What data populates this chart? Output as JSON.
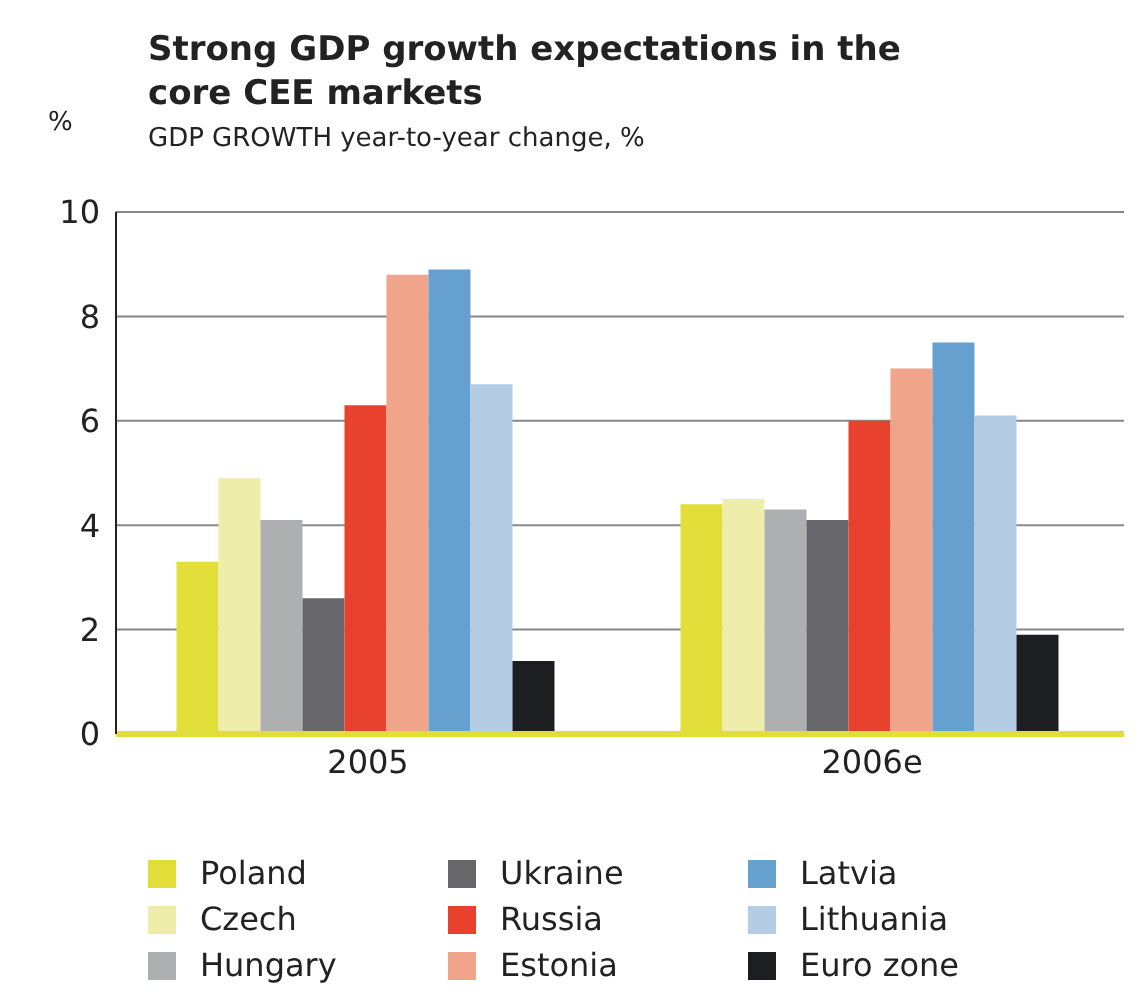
{
  "chart_data": {
    "type": "bar",
    "title": "Strong GDP growth expectations in the core CEE markets",
    "subtitle": "GDP GROWTH year-to-year change, %",
    "ylabel": "%",
    "categories": [
      "2005",
      "2006e"
    ],
    "series": [
      {
        "name": "Poland",
        "color": "#e2de39",
        "values": [
          3.3,
          4.4
        ]
      },
      {
        "name": "Czech",
        "color": "#eeeda9",
        "values": [
          4.9,
          4.5
        ]
      },
      {
        "name": "Hungary",
        "color": "#aeafb1",
        "values": [
          4.1,
          4.3
        ]
      },
      {
        "name": "Ukraine",
        "color": "#67666b",
        "values": [
          2.6,
          4.1
        ]
      },
      {
        "name": "Russia",
        "color": "#e8412e",
        "values": [
          6.3,
          6.0
        ]
      },
      {
        "name": "Estonia",
        "color": "#f0a58a",
        "values": [
          8.8,
          7.0
        ]
      },
      {
        "name": "Latvia",
        "color": "#65a0cf",
        "values": [
          8.9,
          7.5
        ]
      },
      {
        "name": "Lithuania",
        "color": "#b4cde5",
        "values": [
          6.7,
          6.1
        ]
      },
      {
        "name": "Euro zone",
        "color": "#1d1e22",
        "values": [
          1.4,
          1.9
        ]
      }
    ],
    "ylim": [
      0,
      10
    ],
    "yticks": [
      0,
      2,
      4,
      6,
      8,
      10
    ],
    "grid": "y",
    "legend": "bottom"
  }
}
